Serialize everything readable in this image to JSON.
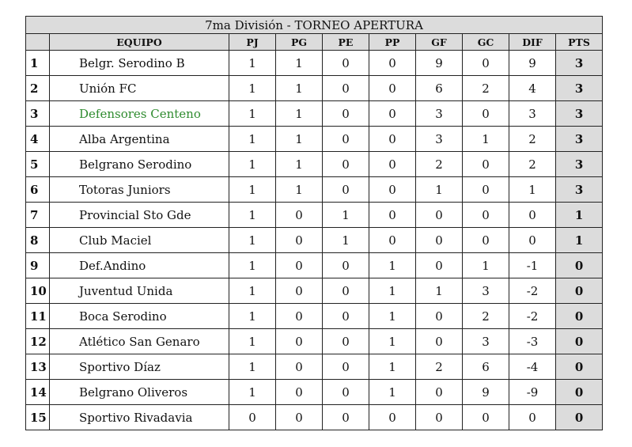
{
  "title": "7ma División - TORNEO APERTURA",
  "headers": [
    "",
    "EQUIPO",
    "PJ",
    "PG",
    "PE",
    "PP",
    "GF",
    "GC",
    "DIF",
    "PTS"
  ],
  "highlight_color": "#2e8b2e",
  "rows": [
    {
      "pos": "1",
      "team": "Belgr. Serodino B",
      "pj": "1",
      "pg": "1",
      "pe": "0",
      "pp": "0",
      "gf": "9",
      "gc": "0",
      "dif": "9",
      "pts": "3"
    },
    {
      "pos": "2",
      "team": "Unión FC",
      "pj": "1",
      "pg": "1",
      "pe": "0",
      "pp": "0",
      "gf": "6",
      "gc": "2",
      "dif": "4",
      "pts": "3"
    },
    {
      "pos": "3",
      "team": "Defensores Centeno",
      "pj": "1",
      "pg": "1",
      "pe": "0",
      "pp": "0",
      "gf": "3",
      "gc": "0",
      "dif": "3",
      "pts": "3",
      "highlight": true
    },
    {
      "pos": "4",
      "team": "Alba Argentina",
      "pj": "1",
      "pg": "1",
      "pe": "0",
      "pp": "0",
      "gf": "3",
      "gc": "1",
      "dif": "2",
      "pts": "3"
    },
    {
      "pos": "5",
      "team": "Belgrano Serodino",
      "pj": "1",
      "pg": "1",
      "pe": "0",
      "pp": "0",
      "gf": "2",
      "gc": "0",
      "dif": "2",
      "pts": "3"
    },
    {
      "pos": "6",
      "team": "Totoras Juniors",
      "pj": "1",
      "pg": "1",
      "pe": "0",
      "pp": "0",
      "gf": "1",
      "gc": "0",
      "dif": "1",
      "pts": "3"
    },
    {
      "pos": "7",
      "team": "Provincial Sto Gde",
      "pj": "1",
      "pg": "0",
      "pe": "1",
      "pp": "0",
      "gf": "0",
      "gc": "0",
      "dif": "0",
      "pts": "1"
    },
    {
      "pos": "8",
      "team": "Club Maciel",
      "pj": "1",
      "pg": "0",
      "pe": "1",
      "pp": "0",
      "gf": "0",
      "gc": "0",
      "dif": "0",
      "pts": "1"
    },
    {
      "pos": "9",
      "team": "Def.Andino",
      "pj": "1",
      "pg": "0",
      "pe": "0",
      "pp": "1",
      "gf": "0",
      "gc": "1",
      "dif": "-1",
      "pts": "0"
    },
    {
      "pos": "10",
      "team": "Juventud Unida",
      "pj": "1",
      "pg": "0",
      "pe": "0",
      "pp": "1",
      "gf": "1",
      "gc": "3",
      "dif": "-2",
      "pts": "0"
    },
    {
      "pos": "11",
      "team": "Boca Serodino",
      "pj": "1",
      "pg": "0",
      "pe": "0",
      "pp": "1",
      "gf": "0",
      "gc": "2",
      "dif": "-2",
      "pts": "0"
    },
    {
      "pos": "12",
      "team": "Atlético San Genaro",
      "pj": "1",
      "pg": "0",
      "pe": "0",
      "pp": "1",
      "gf": "0",
      "gc": "3",
      "dif": "-3",
      "pts": "0"
    },
    {
      "pos": "13",
      "team": "Sportivo Díaz",
      "pj": "1",
      "pg": "0",
      "pe": "0",
      "pp": "1",
      "gf": "2",
      "gc": "6",
      "dif": "-4",
      "pts": "0"
    },
    {
      "pos": "14",
      "team": "Belgrano Oliveros",
      "pj": "1",
      "pg": "0",
      "pe": "0",
      "pp": "1",
      "gf": "0",
      "gc": "9",
      "dif": "-9",
      "pts": "0"
    },
    {
      "pos": "15",
      "team": "Sportivo Rivadavia",
      "pj": "0",
      "pg": "0",
      "pe": "0",
      "pp": "0",
      "gf": "0",
      "gc": "0",
      "dif": "0",
      "pts": "0"
    }
  ]
}
